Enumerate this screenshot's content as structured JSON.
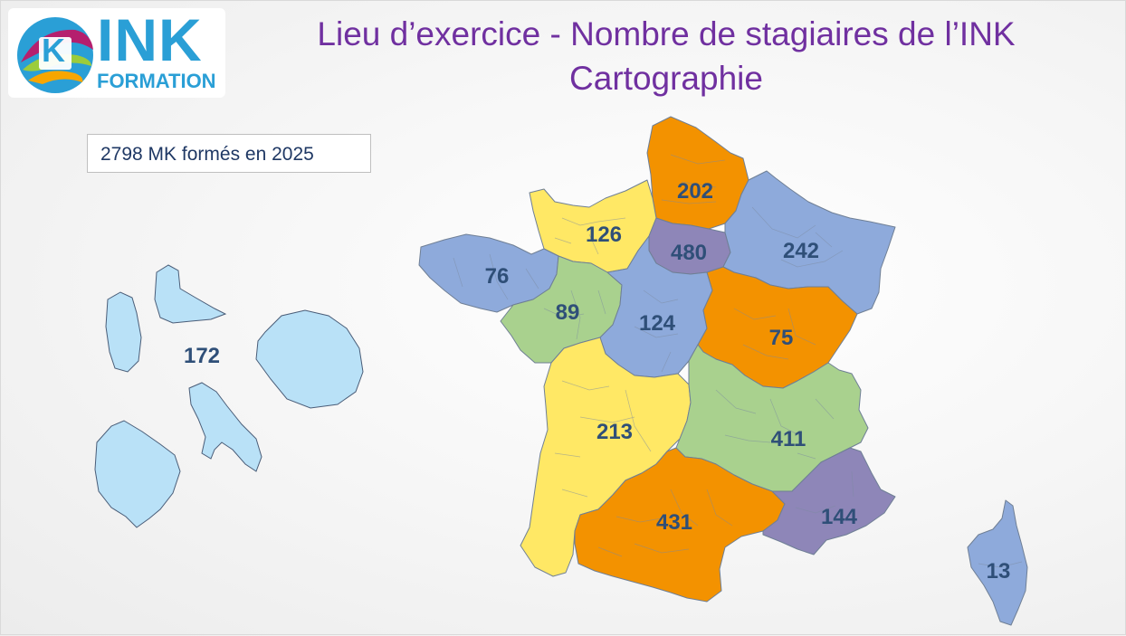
{
  "logo": {
    "brand": "INK",
    "subtitle": "FORMATION",
    "mark": "K"
  },
  "title": {
    "line1": "Lieu d’exercice - Nombre de stagiaires de l’INK",
    "line2": "Cartographie"
  },
  "summary": "2798 MK formés en 2025",
  "colors": {
    "blue": "#8eaadb",
    "yellow": "#ffe865",
    "orange": "#f39200",
    "purple": "#8e86b8",
    "green": "#a9d18e",
    "overseas": "#b9e1f7",
    "title": "#7030a0"
  },
  "regions": [
    {
      "name": "Hauts-de-France",
      "value": "202",
      "color": "orange"
    },
    {
      "name": "Normandie",
      "value": "126",
      "color": "yellow"
    },
    {
      "name": "Île-de-France",
      "value": "480",
      "color": "purple"
    },
    {
      "name": "Grand Est",
      "value": "242",
      "color": "blue"
    },
    {
      "name": "Bretagne",
      "value": "76",
      "color": "blue"
    },
    {
      "name": "Pays de la Loire",
      "value": "89",
      "color": "green"
    },
    {
      "name": "Centre-Val de Loire",
      "value": "124",
      "color": "blue"
    },
    {
      "name": "Bourgogne-Franche-Comté",
      "value": "75",
      "color": "orange"
    },
    {
      "name": "Nouvelle-Aquitaine",
      "value": "213",
      "color": "yellow"
    },
    {
      "name": "Auvergne-Rhône-Alpes",
      "value": "411",
      "color": "green"
    },
    {
      "name": "Occitanie",
      "value": "431",
      "color": "orange"
    },
    {
      "name": "Provence-Alpes-Côte d'Azur",
      "value": "144",
      "color": "purple"
    },
    {
      "name": "Corse",
      "value": "13",
      "color": "blue"
    },
    {
      "name": "Outre-mer",
      "value": "172",
      "color": "overseas"
    }
  ]
}
